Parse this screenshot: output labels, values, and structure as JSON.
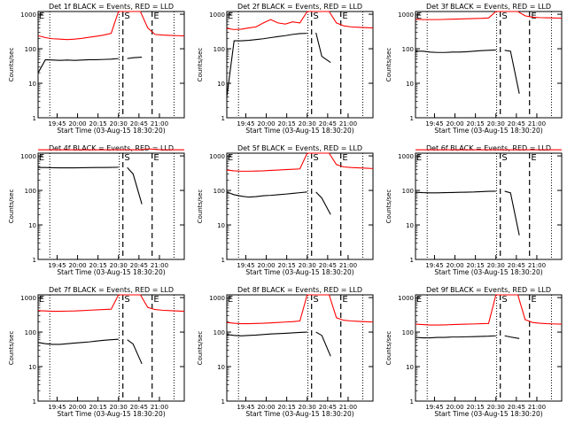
{
  "ylabel": "Counts/sec",
  "xlabel": "Start Time (03-Aug-15 18:30:20)",
  "colors": {
    "events": "#000000",
    "lld": "#ff0000",
    "axes": "#000000",
    "background": "#ffffff"
  },
  "ytick_labels": [
    "1",
    "10",
    "100",
    "1000"
  ],
  "xtick_labels": [
    "19:45",
    "20:00",
    "20:15",
    "20:30",
    "20:45",
    "21:00"
  ],
  "marker_labels": {
    "start": "S",
    "end": "E",
    "left": "E"
  },
  "chart_data": [
    {
      "type": "line",
      "title": "Det 1f BLACK = Events, RED = LLD",
      "ylog": true,
      "ylim": [
        1,
        1200
      ],
      "xticks": [
        "19:45",
        "20:00",
        "20:15",
        "20:30",
        "20:45",
        "21:00"
      ],
      "series": [
        {
          "role": "events",
          "x": [
            0,
            1,
            2,
            3,
            4,
            5,
            6,
            7,
            8,
            9,
            10,
            11
          ],
          "y": [
            20,
            48,
            47,
            46,
            47,
            46,
            47,
            48,
            48,
            49,
            50,
            52
          ],
          "x2": [
            12.2,
            13,
            14.2
          ],
          "y2": [
            52,
            55,
            57
          ]
        },
        {
          "role": "lld",
          "x": [
            0,
            1,
            2,
            3,
            4,
            5,
            6,
            7,
            8,
            9,
            10,
            11,
            12,
            13,
            14,
            15,
            16,
            17,
            18,
            19,
            20
          ],
          "y": [
            240,
            210,
            195,
            190,
            185,
            190,
            200,
            215,
            230,
            250,
            280,
            1200,
            1200,
            1200,
            1200,
            400,
            260,
            250,
            245,
            240,
            235
          ]
        }
      ]
    },
    {
      "type": "line",
      "title": "Det 2f BLACK = Events, RED = LLD",
      "ylog": true,
      "ylim": [
        1,
        1200
      ],
      "xticks": [
        "19:45",
        "20:00",
        "20:15",
        "20:30",
        "20:45",
        "21:00"
      ],
      "series": [
        {
          "role": "events",
          "x": [
            0,
            1,
            2,
            3,
            4,
            5,
            6,
            7,
            8,
            9,
            10,
            11
          ],
          "y": [
            4,
            170,
            170,
            175,
            185,
            195,
            210,
            225,
            240,
            260,
            275,
            280
          ],
          "x2": [
            12.2,
            13,
            14.2
          ],
          "y2": [
            290,
            60,
            40
          ]
        },
        {
          "role": "lld",
          "x": [
            0,
            1,
            2,
            3,
            4,
            5,
            6,
            7,
            8,
            9,
            10,
            11,
            12,
            13,
            14,
            15,
            16,
            17,
            18,
            19,
            20
          ],
          "y": [
            390,
            360,
            370,
            400,
            430,
            560,
            700,
            560,
            520,
            600,
            560,
            1200,
            1200,
            1200,
            1200,
            560,
            460,
            430,
            420,
            410,
            400
          ]
        }
      ]
    },
    {
      "type": "line",
      "title": "Det 3f BLACK = Events, RED = LLD",
      "ylog": true,
      "ylim": [
        1,
        1200
      ],
      "xticks": [
        "19:45",
        "20:00",
        "20:15",
        "20:30",
        "20:45",
        "21:00"
      ],
      "series": [
        {
          "role": "events",
          "x": [
            0,
            1,
            2,
            3,
            4,
            5,
            6,
            7,
            8,
            9,
            10,
            11
          ],
          "y": [
            85,
            85,
            80,
            78,
            78,
            80,
            80,
            82,
            85,
            88,
            90,
            92
          ],
          "x2": [
            12.2,
            13,
            14.2
          ],
          "y2": [
            90,
            85,
            5
          ]
        },
        {
          "role": "lld",
          "x": [
            0,
            1,
            2,
            3,
            4,
            5,
            6,
            7,
            8,
            9,
            10,
            11,
            12,
            13,
            14,
            15,
            16,
            17,
            18,
            19,
            20
          ],
          "y": [
            720,
            700,
            700,
            700,
            710,
            720,
            730,
            740,
            750,
            760,
            780,
            1200,
            1200,
            1200,
            1200,
            900,
            820,
            800,
            790,
            780,
            770
          ]
        }
      ]
    },
    {
      "type": "line",
      "title": "Det 4f BLACK = Events, RED = LLD",
      "ylog": true,
      "ylim": [
        1,
        1200
      ],
      "xticks": [
        "19:45",
        "20:00",
        "20:15",
        "20:30",
        "20:45",
        "21:00"
      ],
      "series": [
        {
          "role": "events",
          "x": [
            0,
            1,
            2,
            3,
            4,
            5,
            6,
            7,
            8,
            9,
            10,
            11
          ],
          "y": [
            460,
            460,
            455,
            450,
            450,
            452,
            455,
            458,
            460,
            462,
            465,
            470
          ],
          "x2": [
            12.2,
            13,
            14.2
          ],
          "y2": [
            460,
            300,
            40
          ]
        },
        {
          "role": "lld",
          "x": [
            0,
            1,
            2,
            3,
            4,
            5,
            6,
            7,
            8,
            9,
            10,
            11,
            12,
            13,
            14,
            15,
            16,
            17,
            18,
            19,
            20
          ],
          "y": [
            1500,
            1500,
            1500,
            1500,
            1500,
            1500,
            1500,
            1500,
            1500,
            1500,
            1500,
            1500,
            1500,
            1500,
            1500,
            1600,
            1550,
            1500,
            1500,
            1500,
            1500
          ]
        }
      ]
    },
    {
      "type": "line",
      "title": "Det 5f BLACK = Events, RED = LLD",
      "ylog": true,
      "ylim": [
        1,
        1200
      ],
      "xticks": [
        "19:45",
        "20:00",
        "20:15",
        "20:30",
        "20:45",
        "21:00"
      ],
      "series": [
        {
          "role": "events",
          "x": [
            0,
            1,
            2,
            3,
            4,
            5,
            6,
            7,
            8,
            9,
            10,
            11
          ],
          "y": [
            90,
            75,
            68,
            64,
            66,
            70,
            72,
            75,
            78,
            82,
            86,
            90
          ],
          "x2": [
            12.2,
            13,
            14.2
          ],
          "y2": [
            90,
            60,
            20
          ]
        },
        {
          "role": "lld",
          "x": [
            0,
            1,
            2,
            3,
            4,
            5,
            6,
            7,
            8,
            9,
            10,
            11,
            12,
            13,
            14,
            15,
            16,
            17,
            18,
            19,
            20
          ],
          "y": [
            390,
            370,
            360,
            360,
            365,
            370,
            380,
            390,
            400,
            410,
            420,
            1200,
            1200,
            1200,
            1200,
            560,
            480,
            460,
            450,
            440,
            430
          ]
        }
      ]
    },
    {
      "type": "line",
      "title": "Det 6f BLACK = Events, RED = LLD",
      "ylog": true,
      "ylim": [
        1,
        1200
      ],
      "xticks": [
        "19:45",
        "20:00",
        "20:15",
        "20:30",
        "20:45",
        "21:00"
      ],
      "series": [
        {
          "role": "events",
          "x": [
            0,
            1,
            2,
            3,
            4,
            5,
            6,
            7,
            8,
            9,
            10,
            11
          ],
          "y": [
            88,
            86,
            85,
            85,
            86,
            87,
            88,
            89,
            90,
            92,
            94,
            95
          ],
          "x2": [
            12.2,
            13,
            14.2
          ],
          "y2": [
            95,
            85,
            5
          ]
        },
        {
          "role": "lld",
          "x": [
            0,
            1,
            2,
            3,
            4,
            5,
            6,
            7,
            8,
            9,
            10,
            11,
            12,
            13,
            14,
            15,
            16,
            17,
            18,
            19,
            20
          ],
          "y": [
            1500,
            1500,
            1500,
            1500,
            1500,
            1500,
            1500,
            1500,
            1500,
            1500,
            1500,
            1500,
            1500,
            1500,
            1500,
            1500,
            1500,
            1500,
            1500,
            1500,
            1500
          ]
        }
      ]
    },
    {
      "type": "line",
      "title": "Det 7f BLACK = Events, RED = LLD",
      "ylog": true,
      "ylim": [
        1,
        1200
      ],
      "xticks": [
        "19:45",
        "20:00",
        "20:15",
        "20:30",
        "20:45",
        "21:00"
      ],
      "series": [
        {
          "role": "events",
          "x": [
            0,
            1,
            2,
            3,
            4,
            5,
            6,
            7,
            8,
            9,
            10,
            11
          ],
          "y": [
            50,
            46,
            44,
            44,
            46,
            48,
            50,
            52,
            55,
            58,
            60,
            62
          ],
          "x2": [
            12.2,
            13,
            14.2
          ],
          "y2": [
            60,
            45,
            12
          ]
        },
        {
          "role": "lld",
          "x": [
            0,
            1,
            2,
            3,
            4,
            5,
            6,
            7,
            8,
            9,
            10,
            11,
            12,
            13,
            14,
            15,
            16,
            17,
            18,
            19,
            20
          ],
          "y": [
            420,
            410,
            400,
            400,
            405,
            410,
            420,
            430,
            440,
            450,
            460,
            1200,
            1200,
            1200,
            1200,
            520,
            450,
            430,
            420,
            410,
            400
          ]
        }
      ]
    },
    {
      "type": "line",
      "title": "Det 8f BLACK = Events, RED = LLD",
      "ylog": true,
      "ylim": [
        1,
        1200
      ],
      "xticks": [
        "19:45",
        "20:00",
        "20:15",
        "20:30",
        "20:45",
        "21:00"
      ],
      "series": [
        {
          "role": "events",
          "x": [
            0,
            1,
            2,
            3,
            4,
            5,
            6,
            7,
            8,
            9,
            10,
            11
          ],
          "y": [
            85,
            80,
            78,
            80,
            82,
            85,
            88,
            90,
            92,
            95,
            98,
            100
          ],
          "x2": [
            12.2,
            13,
            14.2
          ],
          "y2": [
            100,
            80,
            20
          ]
        },
        {
          "role": "lld",
          "x": [
            0,
            1,
            2,
            3,
            4,
            5,
            6,
            7,
            8,
            9,
            10,
            11,
            12,
            13,
            14,
            15,
            16,
            17,
            18,
            19,
            20
          ],
          "y": [
            190,
            180,
            175,
            175,
            178,
            180,
            185,
            190,
            195,
            200,
            210,
            1200,
            1200,
            1200,
            1200,
            260,
            220,
            210,
            205,
            200,
            195
          ]
        }
      ]
    },
    {
      "type": "line",
      "title": "Det 9f BLACK = Events, RED = LLD",
      "ylog": true,
      "ylim": [
        1,
        1200
      ],
      "xticks": [
        "19:45",
        "20:00",
        "20:15",
        "20:30",
        "20:45",
        "21:00"
      ],
      "series": [
        {
          "role": "events",
          "x": [
            0,
            1,
            2,
            3,
            4,
            5,
            6,
            7,
            8,
            9,
            10,
            11
          ],
          "y": [
            70,
            68,
            68,
            70,
            70,
            72,
            72,
            73,
            74,
            75,
            76,
            78
          ],
          "x2": [
            12.2,
            13,
            14.2
          ],
          "y2": [
            78,
            72,
            65
          ]
        },
        {
          "role": "lld",
          "x": [
            0,
            1,
            2,
            3,
            4,
            5,
            6,
            7,
            8,
            9,
            10,
            11,
            12,
            13,
            14,
            15,
            16,
            17,
            18,
            19,
            20
          ],
          "y": [
            170,
            165,
            160,
            160,
            162,
            165,
            168,
            170,
            172,
            175,
            178,
            1200,
            1200,
            1200,
            1200,
            230,
            190,
            180,
            175,
            172,
            170
          ]
        }
      ]
    }
  ]
}
